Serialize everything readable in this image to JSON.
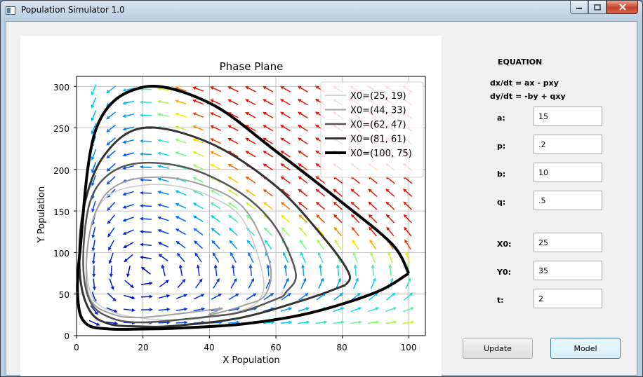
{
  "window": {
    "title": "Population Simulator 1.0"
  },
  "plot": {
    "title": "Phase Plane",
    "xlabel": "X Population",
    "ylabel": "Y Population",
    "xticks": [
      "0",
      "20",
      "40",
      "60",
      "80",
      "100"
    ],
    "yticks": [
      "0",
      "50",
      "100",
      "150",
      "200",
      "250",
      "300"
    ]
  },
  "chart_data": {
    "type": "line",
    "title": "Phase Plane",
    "xlabel": "X Population",
    "ylabel": "Y Population",
    "xlim": [
      0,
      105
    ],
    "ylim": [
      0,
      312
    ],
    "grid": true,
    "legend_placement": "top-right",
    "background": "quiver field of direction arrows colored blue (slow) to cyan/green/yellow/red (fast)",
    "series": [
      {
        "name": "X0=(25, 19)",
        "color": "#c8c8c8",
        "x": [
          25,
          20,
          12,
          5,
          3,
          5,
          10,
          20,
          30,
          40,
          50,
          56,
          55,
          48,
          38,
          30,
          25
        ],
        "y": [
          19,
          21,
          27,
          45,
          90,
          140,
          170,
          181,
          180,
          168,
          140,
          75,
          43,
          28,
          21,
          19,
          19
        ]
      },
      {
        "name": "X0=(44, 33)",
        "color": "#a0a0a0",
        "x": [
          44,
          20,
          10,
          4,
          3,
          5,
          10,
          20,
          35,
          50,
          58,
          57,
          50,
          40,
          44
        ],
        "y": [
          33,
          22,
          27,
          45,
          90,
          140,
          175,
          190,
          185,
          155,
          90,
          50,
          36,
          25,
          33
        ]
      },
      {
        "name": "X0=(62, 47)",
        "color": "#555555",
        "x": [
          62,
          50,
          40,
          20,
          10,
          4,
          2,
          4,
          10,
          20,
          35,
          50,
          60,
          66,
          63,
          62
        ],
        "y": [
          47,
          29,
          23,
          16,
          22,
          42,
          90,
          160,
          195,
          208,
          200,
          170,
          130,
          75,
          52,
          47
        ]
      },
      {
        "name": "X0=(81, 61)",
        "color": "#333333",
        "x": [
          81,
          70,
          50,
          30,
          20,
          10,
          4,
          1,
          2,
          8,
          20,
          40,
          60,
          75,
          82,
          81
        ],
        "y": [
          61,
          45,
          22,
          12,
          11,
          14,
          30,
          75,
          150,
          215,
          250,
          232,
          180,
          115,
          75,
          61
        ]
      },
      {
        "name": "X0=(100, 75)",
        "color": "#000000",
        "x": [
          100,
          90,
          70,
          50,
          30,
          20,
          10,
          3,
          0.5,
          1,
          6,
          20,
          40,
          60,
          80,
          95,
          100
        ],
        "y": [
          75,
          52,
          27,
          14,
          9,
          8,
          8,
          14,
          40,
          100,
          250,
          299,
          280,
          222,
          160,
          110,
          75
        ]
      }
    ]
  },
  "equation": {
    "heading": "EQUATION",
    "line1": "dx/dt = ax - pxy",
    "line2": "dy/dt = -by + qxy"
  },
  "params": [
    {
      "label": "a:",
      "value": "15"
    },
    {
      "label": "p:",
      "value": ".2"
    },
    {
      "label": "b:",
      "value": "10"
    },
    {
      "label": "q:",
      "value": ".5"
    },
    {
      "label": "X0:",
      "value": "25"
    },
    {
      "label": "Y0:",
      "value": "35"
    },
    {
      "label": "t:",
      "value": "2"
    }
  ],
  "buttons": {
    "update": "Update",
    "model": "Model"
  }
}
